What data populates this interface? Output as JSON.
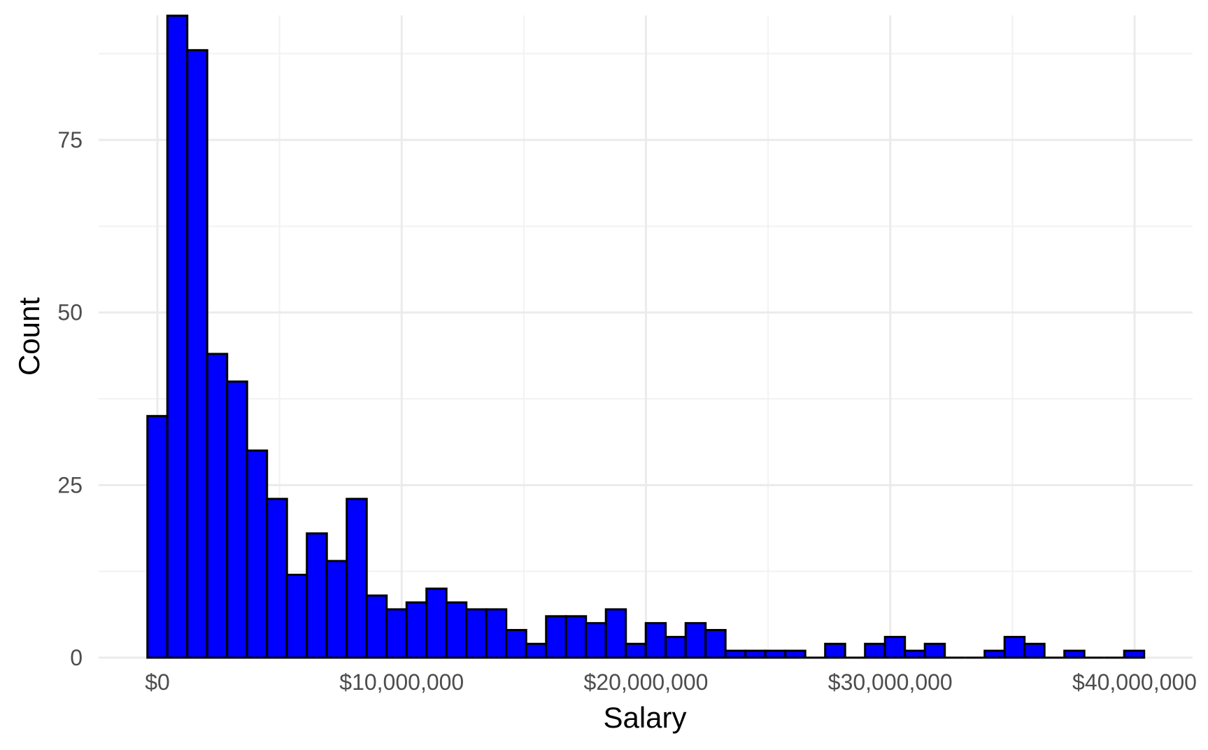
{
  "chart_data": {
    "type": "bar",
    "title": "",
    "xlabel": "Salary",
    "ylabel": "Count",
    "bin_width": 816000,
    "first_bin_center": 0,
    "x_ticks": [
      0,
      10000000,
      20000000,
      30000000,
      40000000
    ],
    "x_tick_labels": [
      "$0",
      "$10,000,000",
      "$20,000,000",
      "$30,000,000",
      "$40,000,000"
    ],
    "y_ticks": [
      0,
      25,
      50,
      75
    ],
    "y_tick_labels": [
      "0",
      "25",
      "50",
      "75"
    ],
    "xlim": [
      -2400000,
      42500000
    ],
    "ylim": [
      0,
      93
    ],
    "grid": true,
    "fill_color": "#0000ff",
    "edge_color": "#000000",
    "values": [
      35,
      93,
      88,
      44,
      40,
      30,
      23,
      12,
      18,
      14,
      23,
      9,
      7,
      8,
      10,
      8,
      7,
      7,
      4,
      2,
      6,
      6,
      5,
      7,
      2,
      5,
      3,
      5,
      4,
      1,
      1,
      1,
      1,
      0,
      2,
      0,
      2,
      3,
      1,
      2,
      0,
      0,
      1,
      3,
      2,
      0,
      1,
      0,
      0,
      1
    ]
  }
}
